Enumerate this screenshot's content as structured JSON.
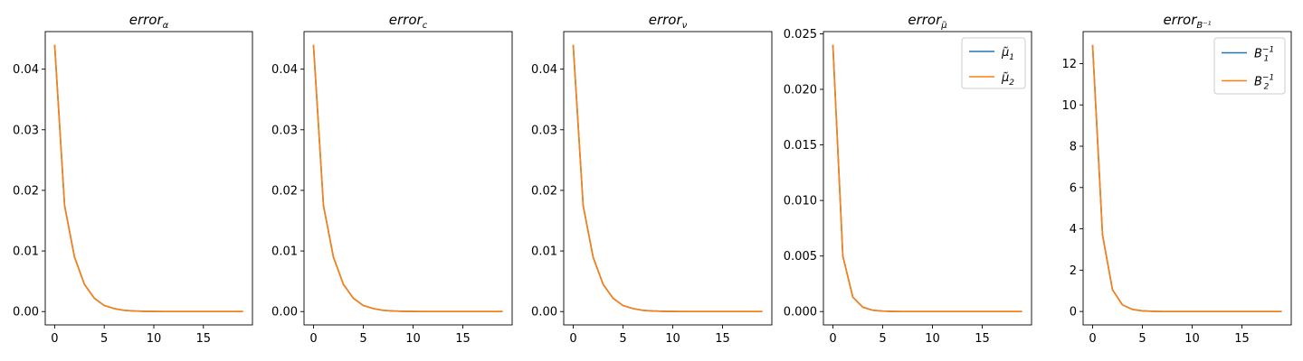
{
  "colors": {
    "series1": "#1f77b4",
    "series2": "#ff7f0e",
    "axis": "#000000",
    "legend_border": "#cccccc"
  },
  "chart_data": [
    {
      "type": "line",
      "title": {
        "base": "error",
        "sub": "α"
      },
      "x": [
        0,
        1,
        2,
        3,
        4,
        5,
        6,
        7,
        8,
        9,
        10,
        11,
        12,
        13,
        14,
        15,
        16,
        17,
        18,
        19
      ],
      "xlim": [
        -0.95,
        19.95
      ],
      "ylim": [
        -0.0022,
        0.0462
      ],
      "xticks": [
        "0",
        "5",
        "10",
        "15"
      ],
      "yticks": [
        "0.00",
        "0.01",
        "0.02",
        "0.03",
        "0.04"
      ],
      "legend": null,
      "series": [
        {
          "values": [
            0.044,
            0.0175,
            0.009,
            0.0045,
            0.0022,
            0.001,
            0.0005,
            0.0002,
            0.0001,
            5e-05,
            2e-05,
            1e-05,
            0,
            0,
            0,
            0,
            0,
            0,
            0,
            0
          ]
        },
        {
          "values": [
            0.044,
            0.0175,
            0.009,
            0.0045,
            0.0022,
            0.001,
            0.0005,
            0.0002,
            0.0001,
            5e-05,
            2e-05,
            1e-05,
            0,
            0,
            0,
            0,
            0,
            0,
            0,
            0
          ]
        }
      ]
    },
    {
      "type": "line",
      "title": {
        "base": "error",
        "sub": "c"
      },
      "x": [
        0,
        1,
        2,
        3,
        4,
        5,
        6,
        7,
        8,
        9,
        10,
        11,
        12,
        13,
        14,
        15,
        16,
        17,
        18,
        19
      ],
      "xlim": [
        -0.95,
        19.95
      ],
      "ylim": [
        -0.0022,
        0.0462
      ],
      "xticks": [
        "0",
        "5",
        "10",
        "15"
      ],
      "yticks": [
        "0.00",
        "0.01",
        "0.02",
        "0.03",
        "0.04"
      ],
      "legend": null,
      "series": [
        {
          "values": [
            0.044,
            0.0175,
            0.009,
            0.0045,
            0.0022,
            0.001,
            0.0005,
            0.0002,
            0.0001,
            5e-05,
            2e-05,
            1e-05,
            0,
            0,
            0,
            0,
            0,
            0,
            0,
            0
          ]
        },
        {
          "values": [
            0.044,
            0.0175,
            0.009,
            0.0045,
            0.0022,
            0.001,
            0.0005,
            0.0002,
            0.0001,
            5e-05,
            2e-05,
            1e-05,
            0,
            0,
            0,
            0,
            0,
            0,
            0,
            0
          ]
        }
      ]
    },
    {
      "type": "line",
      "title": {
        "base": "error",
        "sub": "ν"
      },
      "x": [
        0,
        1,
        2,
        3,
        4,
        5,
        6,
        7,
        8,
        9,
        10,
        11,
        12,
        13,
        14,
        15,
        16,
        17,
        18,
        19
      ],
      "xlim": [
        -0.95,
        19.95
      ],
      "ylim": [
        -0.0022,
        0.0462
      ],
      "xticks": [
        "0",
        "5",
        "10",
        "15"
      ],
      "yticks": [
        "0.00",
        "0.01",
        "0.02",
        "0.03",
        "0.04"
      ],
      "legend": null,
      "series": [
        {
          "values": [
            0.044,
            0.0175,
            0.009,
            0.0045,
            0.0022,
            0.001,
            0.0005,
            0.0002,
            0.0001,
            5e-05,
            2e-05,
            1e-05,
            0,
            0,
            0,
            0,
            0,
            0,
            0,
            0
          ]
        },
        {
          "values": [
            0.044,
            0.0175,
            0.009,
            0.0045,
            0.0022,
            0.001,
            0.0005,
            0.0002,
            0.0001,
            5e-05,
            2e-05,
            1e-05,
            0,
            0,
            0,
            0,
            0,
            0,
            0,
            0
          ]
        }
      ]
    },
    {
      "type": "line",
      "title": {
        "base": "error",
        "sub": "μ̃"
      },
      "x": [
        0,
        1,
        2,
        3,
        4,
        5,
        6,
        7,
        8,
        9,
        10,
        11,
        12,
        13,
        14,
        15,
        16,
        17,
        18,
        19
      ],
      "xlim": [
        -0.95,
        19.95
      ],
      "ylim": [
        -0.0012,
        0.0252
      ],
      "xticks": [
        "0",
        "5",
        "10",
        "15"
      ],
      "yticks": [
        "0.000",
        "0.005",
        "0.010",
        "0.015",
        "0.020",
        "0.025"
      ],
      "legend": {
        "position": "upper right",
        "entries": [
          {
            "base": "μ̃",
            "sub": "1",
            "sup": ""
          },
          {
            "base": "μ̃",
            "sub": "2",
            "sup": ""
          }
        ]
      },
      "series": [
        {
          "name": "μ̃1",
          "values": [
            0.024,
            0.005,
            0.0013,
            0.0004,
            0.00012,
            4e-05,
            1e-05,
            0,
            0,
            0,
            0,
            0,
            0,
            0,
            0,
            0,
            0,
            0,
            0,
            0
          ]
        },
        {
          "name": "μ̃2",
          "values": [
            0.024,
            0.005,
            0.0013,
            0.0004,
            0.00012,
            4e-05,
            1e-05,
            0,
            0,
            0,
            0,
            0,
            0,
            0,
            0,
            0,
            0,
            0,
            0,
            0
          ]
        }
      ]
    },
    {
      "type": "line",
      "title": {
        "base": "error",
        "sub": "B⁻¹"
      },
      "x": [
        0,
        1,
        2,
        3,
        4,
        5,
        6,
        7,
        8,
        9,
        10,
        11,
        12,
        13,
        14,
        15,
        16,
        17,
        18,
        19
      ],
      "xlim": [
        -0.95,
        19.95
      ],
      "ylim": [
        -0.65,
        13.55
      ],
      "xticks": [
        "0",
        "5",
        "10",
        "15"
      ],
      "yticks": [
        "0",
        "2",
        "4",
        "6",
        "8",
        "10",
        "12"
      ],
      "legend": {
        "position": "upper right",
        "entries": [
          {
            "base": "B",
            "sub": "1",
            "sup": "−1"
          },
          {
            "base": "B",
            "sub": "2",
            "sup": "−1"
          }
        ]
      },
      "series": [
        {
          "name": "B1^-1",
          "values": [
            12.9,
            3.7,
            1.05,
            0.32,
            0.1,
            0.03,
            0.01,
            0,
            0,
            0,
            0,
            0,
            0,
            0,
            0,
            0,
            0,
            0,
            0,
            0
          ]
        },
        {
          "name": "B2^-1",
          "values": [
            12.9,
            3.7,
            1.05,
            0.32,
            0.1,
            0.03,
            0.01,
            0,
            0,
            0,
            0,
            0,
            0,
            0,
            0,
            0,
            0,
            0,
            0,
            0
          ]
        }
      ]
    }
  ]
}
